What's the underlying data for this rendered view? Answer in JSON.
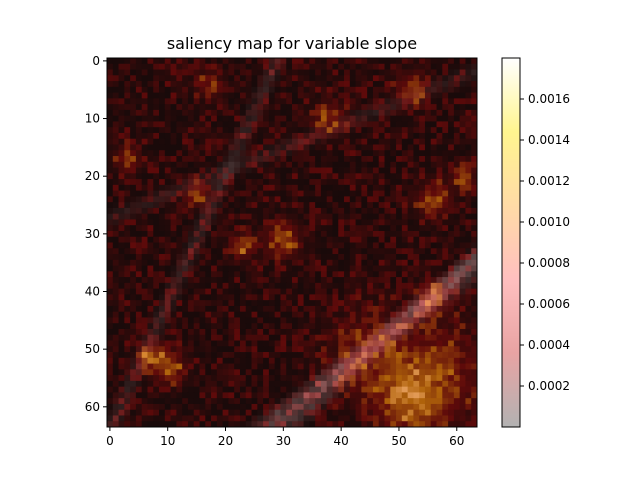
{
  "chart_data": {
    "type": "heatmap",
    "title": "saliency map for variable slope",
    "xlabel": "",
    "ylabel": "",
    "grid_size": [
      64,
      64
    ],
    "xlim": [
      -0.5,
      63.5
    ],
    "ylim": [
      63.5,
      -0.5
    ],
    "x_ticks": [
      0,
      10,
      20,
      30,
      40,
      50,
      60
    ],
    "y_ticks": [
      0,
      10,
      20,
      30,
      40,
      50,
      60
    ],
    "colorbar": {
      "range": [
        0,
        0.0018
      ],
      "ticks": [
        "0.0002",
        "0.0004",
        "0.0006",
        "0.0008",
        "0.0010",
        "0.0012",
        "0.0014",
        "0.0016"
      ],
      "tick_values": [
        0.0002,
        0.0004,
        0.0006,
        0.0008,
        0.001,
        0.0012,
        0.0014,
        0.0016
      ],
      "colormap": "hot (semi-transparent over grey)",
      "colormap_stops": [
        "#b2b2b2",
        "#e8a3a3",
        "#ffbfbf",
        "#ffdba6",
        "#fff58f",
        "#ffffff"
      ],
      "placement": "right"
    },
    "overlay": "saliency heatmap over grey terrain slope image",
    "hotspots": [
      {
        "x": 52,
        "y": 59,
        "value": 0.0012,
        "radius": 4
      },
      {
        "x": 57,
        "y": 54,
        "value": 0.0008,
        "radius": 6
      },
      {
        "x": 45,
        "y": 51,
        "value": 0.0007,
        "radius": 5
      },
      {
        "x": 30,
        "y": 31,
        "value": 0.0013,
        "radius": 2
      },
      {
        "x": 23,
        "y": 32,
        "value": 0.0012,
        "radius": 1.5
      },
      {
        "x": 10,
        "y": 53,
        "value": 0.0012,
        "radius": 2
      },
      {
        "x": 7,
        "y": 51,
        "value": 0.0011,
        "radius": 1.5
      },
      {
        "x": 3,
        "y": 17,
        "value": 0.001,
        "radius": 1.5
      },
      {
        "x": 56,
        "y": 24,
        "value": 0.0011,
        "radius": 2
      },
      {
        "x": 61,
        "y": 20,
        "value": 0.001,
        "radius": 1.5
      },
      {
        "x": 52,
        "y": 5,
        "value": 0.0009,
        "radius": 2
      },
      {
        "x": 15,
        "y": 23,
        "value": 0.001,
        "radius": 1.5
      },
      {
        "x": 17,
        "y": 4,
        "value": 0.0009,
        "radius": 1.5
      },
      {
        "x": 38,
        "y": 10,
        "value": 0.0009,
        "radius": 2
      },
      {
        "x": 56,
        "y": 41,
        "value": 0.0009,
        "radius": 2
      }
    ]
  }
}
